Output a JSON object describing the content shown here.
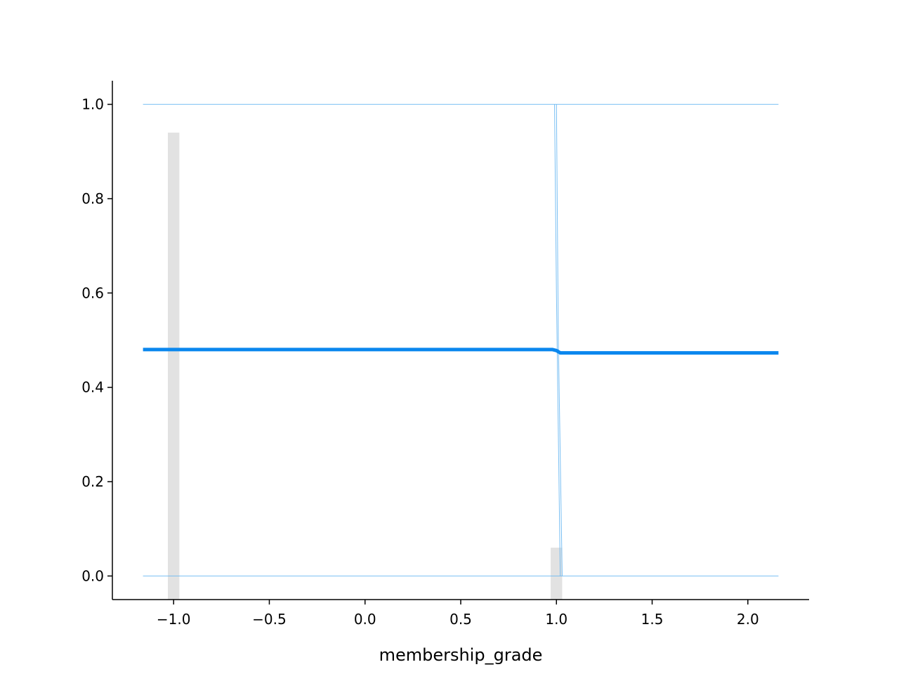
{
  "chart_data": {
    "type": "line",
    "title": "",
    "xlabel": "membership_grade",
    "ylabel": "",
    "xlim": [
      -1.32,
      2.32
    ],
    "ylim": [
      -0.05,
      1.05
    ],
    "x_ticks": [
      -1.0,
      -0.5,
      0.0,
      0.5,
      1.0,
      1.5,
      2.0
    ],
    "x_tick_labels": [
      "−1.0",
      "−0.5",
      "0.0",
      "0.5",
      "1.0",
      "1.5",
      "2.0"
    ],
    "y_ticks": [
      0.0,
      0.2,
      0.4,
      0.6,
      0.8,
      1.0
    ],
    "y_tick_labels": [
      "0.0",
      "0.2",
      "0.4",
      "0.6",
      "0.8",
      "1.0"
    ],
    "grid": false,
    "average_line": {
      "x": [
        -1.16,
        0.98,
        1.0,
        1.02,
        2.16
      ],
      "y": [
        0.48,
        0.48,
        0.478,
        0.473,
        0.473
      ],
      "color": "#0a87ee"
    },
    "individual_lines": {
      "color": "#6ab8f2",
      "lines": [
        {
          "x": [
            -1.16,
            2.16
          ],
          "y": [
            1.0,
            1.0
          ]
        },
        {
          "x": [
            -1.16,
            2.16
          ],
          "y": [
            0.0,
            0.0
          ]
        },
        {
          "x": [
            0.99,
            1.0,
            1.02
          ],
          "y": [
            1.0,
            0.6,
            0.0
          ]
        },
        {
          "x": [
            1.0,
            1.01,
            1.03
          ],
          "y": [
            1.0,
            0.5,
            0.0
          ]
        }
      ]
    },
    "histogram": {
      "color": "#e2e2e2",
      "bins": [
        {
          "x0": -1.03,
          "x1": -0.97,
          "height": 0.94
        },
        {
          "x0": 0.97,
          "x1": 1.03,
          "height": 0.06
        }
      ]
    }
  }
}
